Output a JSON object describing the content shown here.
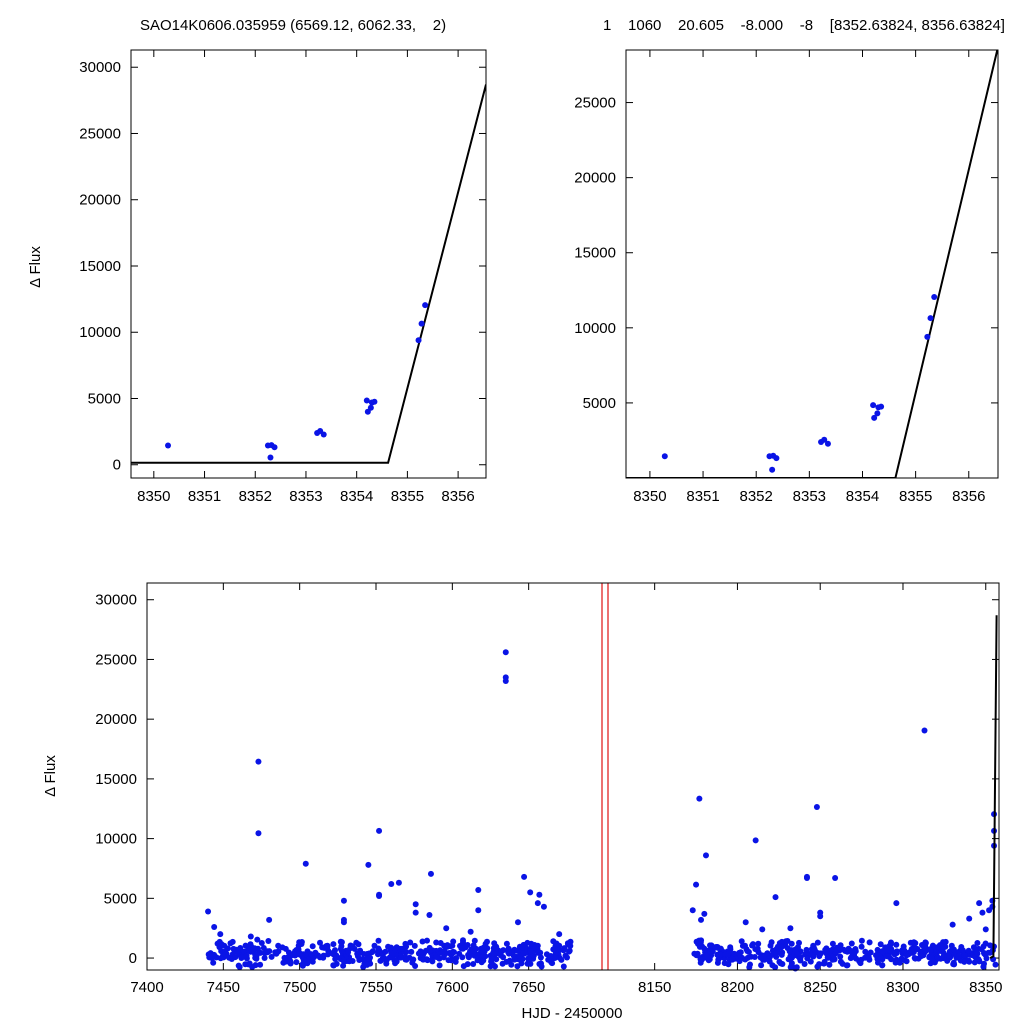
{
  "colors": {
    "points": "#0a14e6",
    "model": "#000000",
    "marker": "#e64040",
    "axes": "#000000"
  },
  "chart_data": [
    {
      "type": "scatter",
      "title": "SAO14K0606.035959 (6569.12, 6062.33,    2)",
      "xlabel": "",
      "ylabel": "Δ Flux",
      "xlim": [
        8349.55,
        8356.55
      ],
      "ylim": [
        -1000,
        31300
      ],
      "xticks": [
        8350,
        8351,
        8352,
        8353,
        8354,
        8355,
        8356
      ],
      "yticks": [
        0,
        5000,
        10000,
        15000,
        20000,
        25000,
        30000
      ],
      "series": [
        {
          "points": [
            [
              8350.28,
              1450
            ],
            [
              8352.25,
              1450
            ],
            [
              8352.32,
              1480
            ],
            [
              8352.38,
              1320
            ],
            [
              8352.3,
              550
            ],
            [
              8353.22,
              2400
            ],
            [
              8353.28,
              2550
            ],
            [
              8353.35,
              2280
            ],
            [
              8354.2,
              4850
            ],
            [
              8354.3,
              4700
            ],
            [
              8354.35,
              4750
            ],
            [
              8354.28,
              4300
            ],
            [
              8354.22,
              4000
            ],
            [
              8355.22,
              9400
            ],
            [
              8355.28,
              10650
            ],
            [
              8355.35,
              12050
            ]
          ]
        }
      ],
      "model_line": [
        [
          8349.55,
          150
        ],
        [
          8354.62,
          150
        ],
        [
          8356.55,
          28700
        ]
      ]
    },
    {
      "type": "scatter",
      "title": "1    1060    20.605    -8.000    -8    [8352.63824, 8356.63824]",
      "xlabel": "",
      "ylabel": "",
      "xlim": [
        8349.55,
        8356.55
      ],
      "ylim": [
        0,
        28500
      ],
      "xticks": [
        8350,
        8351,
        8352,
        8353,
        8354,
        8355,
        8356
      ],
      "yticks": [
        5000,
        10000,
        15000,
        20000,
        25000
      ],
      "series": [
        {
          "points": [
            [
              8350.28,
              1450
            ],
            [
              8352.25,
              1450
            ],
            [
              8352.32,
              1480
            ],
            [
              8352.38,
              1320
            ],
            [
              8352.3,
              550
            ],
            [
              8353.22,
              2400
            ],
            [
              8353.28,
              2550
            ],
            [
              8353.35,
              2280
            ],
            [
              8354.2,
              4850
            ],
            [
              8354.3,
              4700
            ],
            [
              8354.35,
              4750
            ],
            [
              8354.28,
              4300
            ],
            [
              8354.22,
              4000
            ],
            [
              8355.22,
              9400
            ],
            [
              8355.28,
              10650
            ],
            [
              8355.35,
              12050
            ]
          ]
        }
      ],
      "model_line": [
        [
          8349.55,
          0
        ],
        [
          8354.62,
          0
        ],
        [
          8356.55,
          28700
        ]
      ]
    },
    {
      "type": "scatter",
      "title": "",
      "xlabel": "HJD - 2450000",
      "ylabel": "Δ Flux",
      "x_segments": [
        [
          7400,
          7700
        ],
        [
          8120,
          8358
        ]
      ],
      "ylim": [
        -1000,
        31400
      ],
      "xticks": [
        7400,
        7450,
        7500,
        7550,
        7600,
        7650,
        8150,
        8200,
        8250,
        8300,
        8350
      ],
      "yticks": [
        0,
        5000,
        10000,
        15000,
        20000,
        25000,
        30000
      ],
      "series": [
        {
          "points": [
            [
              7473,
              16450
            ],
            [
              7473,
              10450
            ],
            [
              7635,
              25600
            ],
            [
              7635,
              23500
            ],
            [
              7635,
              23200
            ],
            [
              7552,
              10650
            ],
            [
              7504,
              7900
            ],
            [
              7545,
              7800
            ],
            [
              7552,
              5300
            ],
            [
              7552,
              5200
            ],
            [
              7560,
              6200
            ],
            [
              7565,
              6300
            ],
            [
              7529,
              4800
            ],
            [
              7529,
              3200
            ],
            [
              7529,
              3000
            ],
            [
              7586,
              7050
            ],
            [
              7576,
              4500
            ],
            [
              7576,
              3800
            ],
            [
              7585,
              3600
            ],
            [
              7596,
              2500
            ],
            [
              7617,
              5700
            ],
            [
              7617,
              4000
            ],
            [
              7647,
              6800
            ],
            [
              7651,
              5500
            ],
            [
              7657,
              5300
            ],
            [
              7656,
              4600
            ],
            [
              7660,
              4300
            ],
            [
              7440,
              3900
            ],
            [
              7444,
              2600
            ],
            [
              7480,
              3200
            ],
            [
              7468,
              1800
            ],
            [
              7448,
              2000
            ],
            [
              7612,
              2200
            ],
            [
              7643,
              3000
            ],
            [
              7670,
              2000
            ],
            [
              8177,
              13350
            ],
            [
              8181,
              8600
            ],
            [
              8211,
              9850
            ],
            [
              8175,
              6150
            ],
            [
              8173,
              4000
            ],
            [
              8178,
              3200
            ],
            [
              8180,
              3700
            ],
            [
              8223,
              5100
            ],
            [
              8248,
              12650
            ],
            [
              8250,
              3800
            ],
            [
              8250,
              3500
            ],
            [
              8242,
              6700
            ],
            [
              8242,
              6800
            ],
            [
              8259,
              6700
            ],
            [
              8205,
              3000
            ],
            [
              8215,
              2400
            ],
            [
              8232,
              2500
            ],
            [
              8296,
              4600
            ],
            [
              8313,
              19050
            ],
            [
              8330,
              2800
            ],
            [
              8340,
              3300
            ],
            [
              8346,
              4600
            ],
            [
              8348,
              3800
            ],
            [
              8350,
              2400
            ],
            [
              8352,
              4000
            ],
            [
              8354,
              4800
            ],
            [
              8355,
              9400
            ],
            [
              8355,
              10650
            ],
            [
              8355,
              12050
            ],
            [
              8354,
              4300
            ]
          ]
        }
      ],
      "dense_band": {
        "x_segments": [
          [
            7440,
            7678
          ],
          [
            8173,
            8356
          ]
        ],
        "y_range": [
          -900,
          1600
        ],
        "count": 900
      },
      "vertical_markers": [
        7697,
        7703
      ],
      "model_line": [
        [
          8352.6,
          0
        ],
        [
          8354.6,
          150
        ],
        [
          8356.55,
          28700
        ]
      ]
    }
  ]
}
